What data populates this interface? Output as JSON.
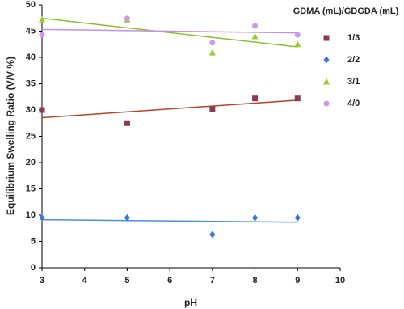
{
  "chart_data": {
    "type": "scatter",
    "x_label": "pH",
    "y_label": "Equilibrium Swelling Ratio (V/V %)",
    "legend_title": "GDMA (mL)/GDGDA (mL)",
    "legend_position": "upper right outside",
    "trendlines": true,
    "x": [
      3,
      5,
      7,
      8,
      9
    ],
    "series": [
      {
        "name": "1/3",
        "color": "#8b3a55",
        "trend_color": "#b5432a",
        "marker": "square",
        "values": [
          30,
          27.5,
          30.2,
          32.2,
          32.2
        ]
      },
      {
        "name": "2/2",
        "color": "#3a78d8",
        "trend_color": "#4a8ee0",
        "marker": "diamond",
        "values": [
          9.5,
          9.5,
          6.3,
          9.5,
          9.5
        ]
      },
      {
        "name": "3/1",
        "color": "#99cc33",
        "trend_color": "#8cbf2a",
        "marker": "triangle",
        "values": [
          47.2,
          47.2,
          40.9,
          44,
          42.5
        ]
      },
      {
        "name": "4/0",
        "color": "#cc99ee",
        "trend_color": "#c490e8",
        "marker": "circle",
        "values": [
          44.3,
          47.4,
          42.8,
          46,
          44.3
        ]
      }
    ],
    "xlim": [
      3,
      10
    ],
    "xticks": [
      3,
      4,
      5,
      6,
      7,
      8,
      9,
      10
    ],
    "ylim": [
      0,
      50
    ],
    "yticks": [
      0,
      5,
      10,
      15,
      20,
      25,
      30,
      35,
      40,
      45,
      50
    ]
  }
}
